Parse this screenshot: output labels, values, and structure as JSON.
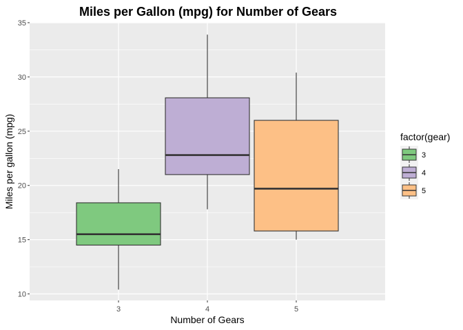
{
  "chart_data": {
    "type": "boxplot",
    "title": "Miles per Gallon (mpg) for Number of Gears",
    "xlabel": "Number of Gears",
    "ylabel": "Miles per gallon (mpg)",
    "categories": [
      "3",
      "4",
      "5"
    ],
    "ylim": [
      9.4,
      35.0
    ],
    "yticks": [
      10,
      15,
      20,
      25,
      30,
      35
    ],
    "grid": true,
    "legend": {
      "title": "factor(gear)",
      "position": "right",
      "entries": [
        "3",
        "4",
        "5"
      ]
    },
    "boxes": [
      {
        "category": "3",
        "min": 10.4,
        "q1": 14.5,
        "median": 15.5,
        "q3": 18.4,
        "max": 21.5,
        "color": "#7FC97F"
      },
      {
        "category": "4",
        "min": 17.8,
        "q1": 21.0,
        "median": 22.8,
        "q3": 28.075,
        "max": 33.9,
        "color": "#BEAED4"
      },
      {
        "category": "5",
        "min": 15.0,
        "q1": 15.8,
        "median": 19.7,
        "q3": 26.0,
        "max": 30.4,
        "color": "#FDC086"
      }
    ]
  },
  "colors": {
    "panel_background": "#EBEBEB",
    "grid_major": "#FFFFFF",
    "outline": "#333333"
  }
}
